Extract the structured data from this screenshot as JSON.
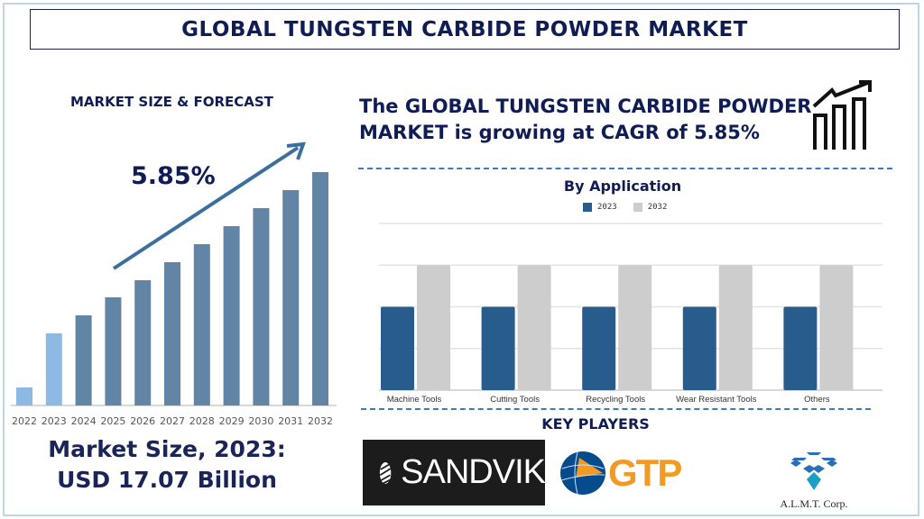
{
  "title": "GLOBAL TUNGSTEN CARBIDE POWDER MARKET",
  "left_panel": {
    "heading": "MARKET SIZE & FORECAST",
    "cagr_label": "5.85%",
    "market_size_line1": "Market Size, 2023:",
    "market_size_line2": "USD 17.07 Billion"
  },
  "headline": {
    "line1": "The GLOBAL TUNGSTEN CARBIDE POWDER",
    "line2": "MARKET is growing at CAGR of 5.85%"
  },
  "key_players": {
    "heading": "KEY PLAYERS",
    "logos": [
      "SANDVIK",
      "GTP",
      "A.L.M.T. Corp."
    ]
  },
  "colors": {
    "navy": "#101c54",
    "historic": "#8db9e2",
    "forecast": "#6385a5",
    "s2023": "#285c8d",
    "s2032": "#cdcdcd"
  },
  "chart_data": [
    {
      "type": "bar",
      "title": "MARKET SIZE & FORECAST",
      "categories": [
        "2022",
        "2023",
        "2024",
        "2025",
        "2026",
        "2027",
        "2028",
        "2029",
        "2030",
        "2031",
        "2032"
      ],
      "values": [
        20,
        80,
        100,
        120,
        139,
        159,
        179,
        199,
        219,
        239,
        259
      ],
      "historic_count": 2,
      "annotation": "5.85%",
      "xlabel": "",
      "ylabel": "",
      "ylim": [
        0,
        270
      ],
      "grid": false
    },
    {
      "type": "bar",
      "title": "By Application",
      "categories": [
        "Machine Tools",
        "Cutting Tools",
        "Recycling Tools",
        "Wear Resistant Tools",
        "Others"
      ],
      "series": [
        {
          "name": "2023",
          "values": [
            2,
            2,
            2,
            2,
            2
          ]
        },
        {
          "name": "2032",
          "values": [
            3,
            3,
            3,
            3,
            3
          ]
        }
      ],
      "ylim": [
        0,
        4
      ],
      "grid": true,
      "legend": "top-center"
    }
  ]
}
